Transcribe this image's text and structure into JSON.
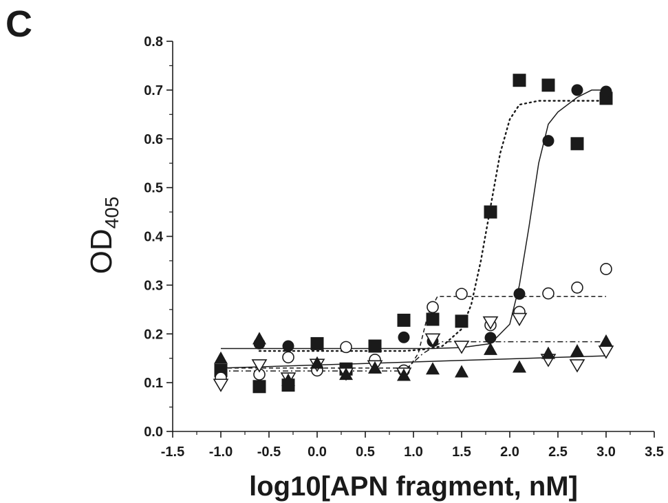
{
  "panel_label": "C",
  "chart_data": {
    "type": "scatter",
    "xlabel": "log10[APN fragment, nM]",
    "ylabel_main": "OD",
    "ylabel_sub": "405",
    "xlim": [
      -1.5,
      3.5
    ],
    "ylim": [
      0.0,
      0.8
    ],
    "x_ticks": [
      -1.5,
      -1.0,
      -0.5,
      0.0,
      0.5,
      1.0,
      1.5,
      2.0,
      2.5,
      3.0,
      3.5
    ],
    "x_tick_labels": [
      "-1.5",
      "-1.0",
      "-0.5",
      "0.0",
      "0.5",
      "1.0",
      "1.5",
      "2.0",
      "2.5",
      "3.0",
      "3.5"
    ],
    "y_ticks": [
      0.0,
      0.1,
      0.2,
      0.3,
      0.4,
      0.5,
      0.6,
      0.7,
      0.8
    ],
    "y_tick_labels": [
      "0.0",
      "0.1",
      "0.2",
      "0.3",
      "0.4",
      "0.5",
      "0.6",
      "0.7",
      "0.8"
    ],
    "grid": false,
    "series": [
      {
        "marker": "filled-square",
        "color": "#1a1a1a",
        "x": [
          -1.0,
          -0.6,
          -0.3,
          0.0,
          0.3,
          0.6,
          0.9,
          1.2,
          1.5,
          1.8,
          2.1,
          2.4,
          2.7,
          3.0
        ],
        "y": [
          0.125,
          0.092,
          0.095,
          0.18,
          0.128,
          0.175,
          0.228,
          0.23,
          0.226,
          0.45,
          0.72,
          0.71,
          0.59,
          0.683
        ],
        "fit": {
          "style": "dotted",
          "x": [
            -0.6,
            0.9,
            1.1,
            1.3,
            1.5,
            1.6,
            1.7,
            1.8,
            1.9,
            2.0,
            2.1,
            2.3,
            3.0
          ],
          "y": [
            0.165,
            0.165,
            0.168,
            0.175,
            0.21,
            0.26,
            0.35,
            0.46,
            0.57,
            0.64,
            0.67,
            0.678,
            0.678
          ]
        }
      },
      {
        "marker": "filled-circle",
        "color": "#1a1a1a",
        "x": [
          -1.0,
          -0.6,
          -0.3,
          0.9,
          1.2,
          1.8,
          2.1,
          2.4,
          2.7,
          3.0
        ],
        "y": [
          0.122,
          0.18,
          0.175,
          0.193,
          0.185,
          0.192,
          0.282,
          0.596,
          0.7,
          0.697
        ],
        "fit": {
          "style": "solid",
          "x": [
            -1.0,
            1.2,
            1.5,
            1.8,
            2.0,
            2.1,
            2.2,
            2.3,
            2.4,
            2.5,
            2.7,
            2.85,
            3.0
          ],
          "y": [
            0.17,
            0.17,
            0.172,
            0.18,
            0.22,
            0.3,
            0.42,
            0.55,
            0.63,
            0.655,
            0.685,
            0.7,
            0.7
          ]
        }
      },
      {
        "marker": "open-circle",
        "color": "#1a1a1a",
        "x": [
          -1.0,
          -0.6,
          -0.3,
          0.0,
          0.3,
          0.6,
          0.9,
          1.2,
          1.5,
          1.8,
          2.1,
          2.4,
          2.7,
          3.0
        ],
        "y": [
          0.11,
          0.117,
          0.152,
          0.125,
          0.173,
          0.147,
          0.125,
          0.255,
          0.282,
          0.218,
          0.245,
          0.283,
          0.295,
          0.333
        ],
        "fit": {
          "style": "dashed",
          "x": [
            -1.0,
            0.95,
            1.05,
            1.15,
            1.25,
            3.0
          ],
          "y": [
            0.13,
            0.13,
            0.16,
            0.24,
            0.277,
            0.277
          ]
        }
      },
      {
        "marker": "open-triangle-down",
        "color": "#1a1a1a",
        "x": [
          -1.0,
          -0.6,
          -0.3,
          0.0,
          0.3,
          0.6,
          0.9,
          1.2,
          1.5,
          1.8,
          2.1,
          2.4,
          2.7,
          3.0
        ],
        "y": [
          0.097,
          0.137,
          0.11,
          0.138,
          0.12,
          0.135,
          0.12,
          0.19,
          0.175,
          0.225,
          0.232,
          0.148,
          0.137,
          0.165
        ],
        "fit": {
          "style": "dash-dot",
          "x": [
            -1.0,
            0.9,
            1.1,
            1.3,
            3.0
          ],
          "y": [
            0.124,
            0.124,
            0.16,
            0.184,
            0.184
          ]
        }
      },
      {
        "marker": "filled-triangle-up",
        "color": "#1a1a1a",
        "x": [
          -1.0,
          -0.6,
          -0.3,
          0.0,
          0.3,
          0.6,
          0.9,
          1.2,
          1.5,
          1.8,
          2.1,
          2.4,
          2.7,
          3.0
        ],
        "y": [
          0.15,
          0.19,
          0.105,
          0.14,
          0.117,
          0.13,
          0.115,
          0.128,
          0.122,
          0.168,
          0.132,
          0.16,
          0.165,
          0.185
        ],
        "fit": {
          "style": "solid",
          "x": [
            -1.0,
            3.0
          ],
          "y": [
            0.13,
            0.155
          ]
        }
      }
    ]
  }
}
